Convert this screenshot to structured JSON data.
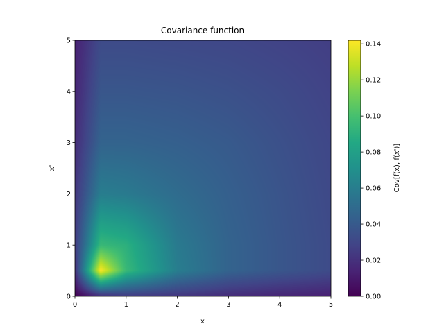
{
  "chart_data": {
    "type": "heatmap",
    "title": "Covariance function",
    "xlabel": "x",
    "ylabel": "x'",
    "xlim": [
      0,
      5
    ],
    "ylim": [
      0,
      5
    ],
    "x_ticks": [
      0,
      1,
      2,
      3,
      4,
      5
    ],
    "y_ticks": [
      0,
      1,
      2,
      3,
      4,
      5
    ],
    "colormap": "viridis",
    "colorbar": {
      "label": "Cov[f(x), f(x')]",
      "range": [
        0.0,
        0.142
      ],
      "ticks": [
        "0.00",
        "0.02",
        "0.04",
        "0.06",
        "0.08",
        "0.10",
        "0.12",
        "0.14"
      ]
    },
    "values_sampled": {
      "x": [
        0,
        0.5,
        1,
        2,
        3,
        4,
        5
      ],
      "y": [
        0,
        0.5,
        1,
        2,
        3,
        4,
        5
      ],
      "z": [
        [
          0.0,
          0.018,
          0.024,
          0.022,
          0.018,
          0.015,
          0.013
        ],
        [
          0.018,
          0.142,
          0.095,
          0.06,
          0.045,
          0.038,
          0.032
        ],
        [
          0.024,
          0.095,
          0.09,
          0.058,
          0.045,
          0.038,
          0.032
        ],
        [
          0.022,
          0.06,
          0.058,
          0.05,
          0.043,
          0.037,
          0.031
        ],
        [
          0.018,
          0.045,
          0.045,
          0.043,
          0.04,
          0.035,
          0.03
        ],
        [
          0.015,
          0.038,
          0.038,
          0.037,
          0.035,
          0.032,
          0.028
        ],
        [
          0.013,
          0.032,
          0.032,
          0.031,
          0.03,
          0.028,
          0.026
        ]
      ]
    }
  }
}
